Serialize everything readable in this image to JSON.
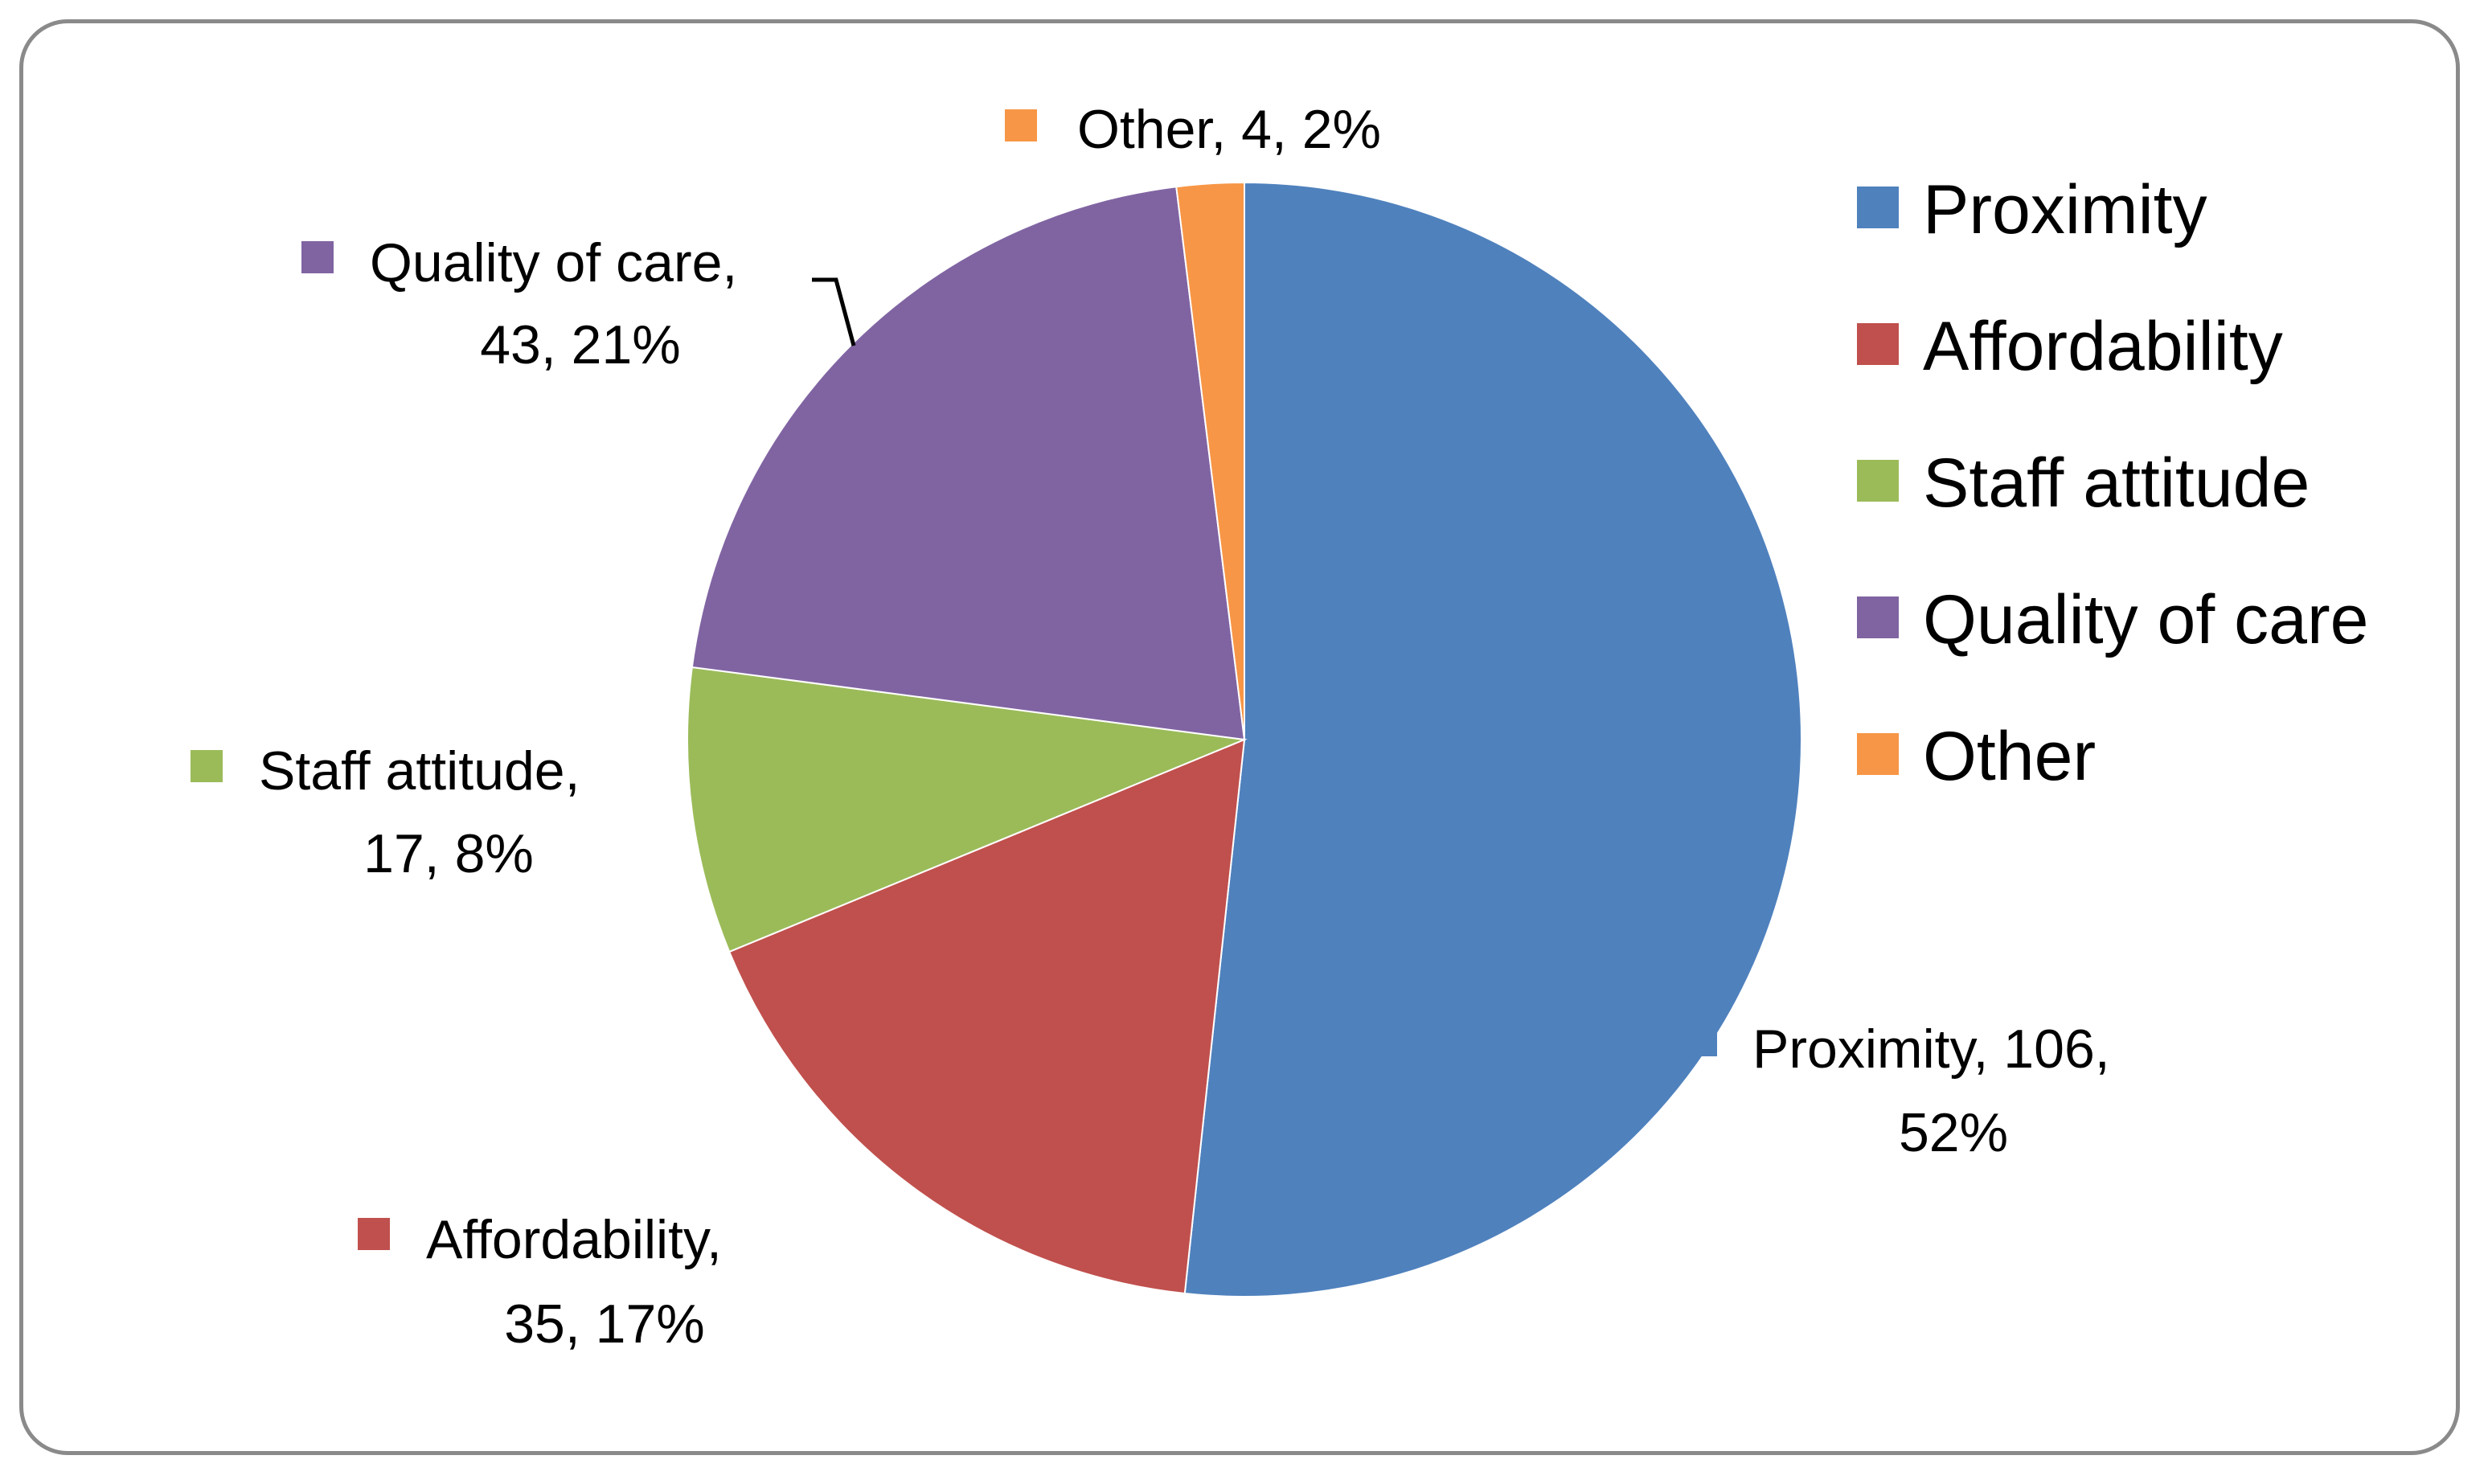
{
  "chart_data": {
    "type": "pie",
    "title": "",
    "categories": [
      "Proximity",
      "Affordability",
      "Staff attitude",
      "Quality of care",
      "Other"
    ],
    "values": [
      106,
      35,
      17,
      43,
      4
    ],
    "percentages": [
      "52%",
      "17%",
      "8%",
      "21%",
      "2%"
    ],
    "colors": [
      "#4f81bd",
      "#c0504d",
      "#9bbb59",
      "#8064a2",
      "#f79646"
    ],
    "legend_position": "right",
    "data_labels": [
      {
        "line1": "Proximity, 106,",
        "line2": "52%"
      },
      {
        "line1": "Affordability,",
        "line2": "35, 17%"
      },
      {
        "line1": "Staff attitude,",
        "line2": "17, 8%"
      },
      {
        "line1": "Quality of care,",
        "line2": "43, 21%"
      },
      {
        "line1": "Other, 4, 2%",
        "line2": ""
      }
    ],
    "legend": [
      "Proximity",
      "Affordability",
      "Staff attitude",
      "Quality of care",
      "Other"
    ]
  }
}
